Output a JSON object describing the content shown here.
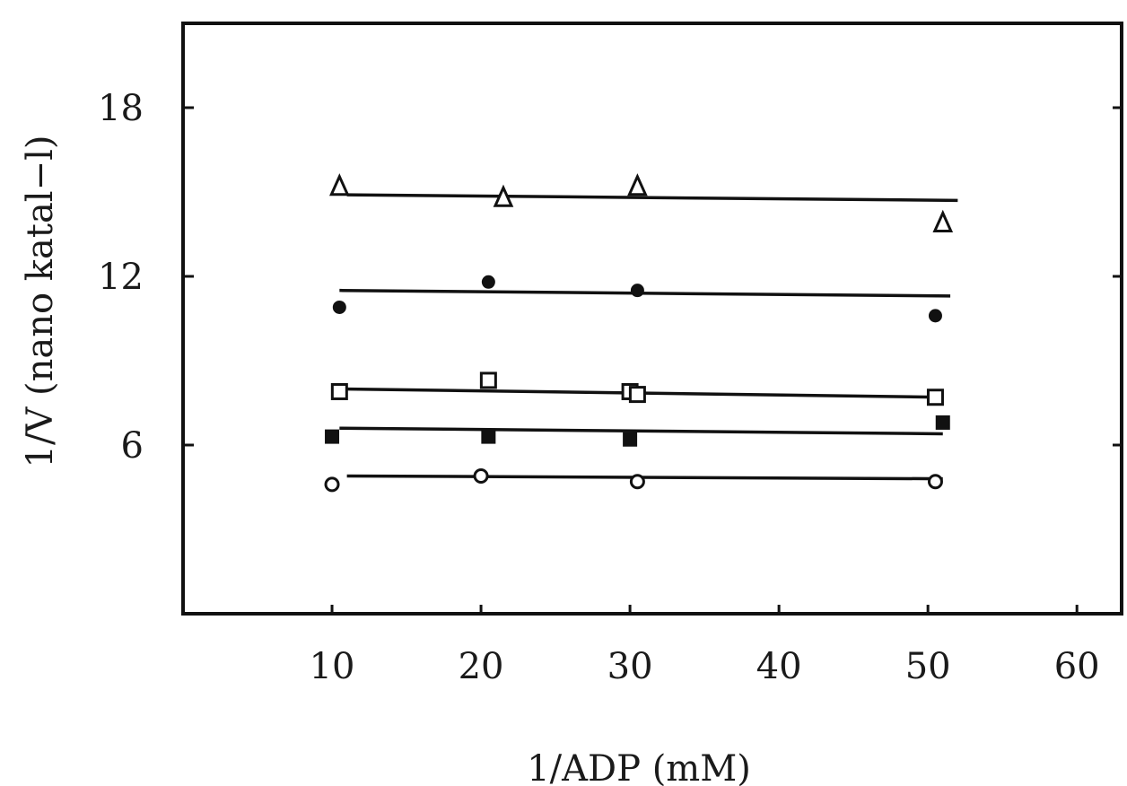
{
  "chart_data": {
    "type": "scatter",
    "title": "",
    "xlabel": "1/ADP (mM)",
    "ylabel": "1/V (nano katal−l)",
    "xlim": [
      0,
      63
    ],
    "ylim": [
      0,
      21
    ],
    "x_ticks": [
      10,
      20,
      30,
      40,
      50,
      60
    ],
    "y_ticks": [
      6,
      12,
      18
    ],
    "grid": false,
    "legend": "none",
    "series": [
      {
        "marker": "open-triangle",
        "points": [
          [
            10.5,
            15.2
          ],
          [
            21.5,
            14.8
          ],
          [
            30.5,
            15.2
          ],
          [
            51,
            13.9
          ]
        ],
        "fit": [
          [
            11,
            14.9
          ],
          [
            52,
            14.7
          ]
        ]
      },
      {
        "marker": "filled-circle",
        "points": [
          [
            10.5,
            10.9
          ],
          [
            20.5,
            11.8
          ],
          [
            30.5,
            11.5
          ],
          [
            50.5,
            10.6
          ]
        ],
        "fit": [
          [
            10.5,
            11.5
          ],
          [
            51.5,
            11.3
          ]
        ]
      },
      {
        "marker": "open-square",
        "points": [
          [
            10.5,
            7.9
          ],
          [
            20.5,
            8.3
          ],
          [
            30,
            7.9
          ],
          [
            30.5,
            7.8
          ],
          [
            50.5,
            7.7
          ]
        ],
        "fit": [
          [
            10,
            8.0
          ],
          [
            51,
            7.7
          ]
        ]
      },
      {
        "marker": "filled-square",
        "points": [
          [
            10,
            6.3
          ],
          [
            20.5,
            6.3
          ],
          [
            30,
            6.2
          ],
          [
            51,
            6.8
          ]
        ],
        "fit": [
          [
            10.5,
            6.6
          ],
          [
            51,
            6.4
          ]
        ]
      },
      {
        "marker": "open-circle",
        "points": [
          [
            10,
            4.6
          ],
          [
            20,
            4.9
          ],
          [
            30.5,
            4.7
          ],
          [
            50.5,
            4.7
          ]
        ],
        "fit": [
          [
            11,
            4.9
          ],
          [
            51,
            4.8
          ]
        ]
      }
    ]
  }
}
